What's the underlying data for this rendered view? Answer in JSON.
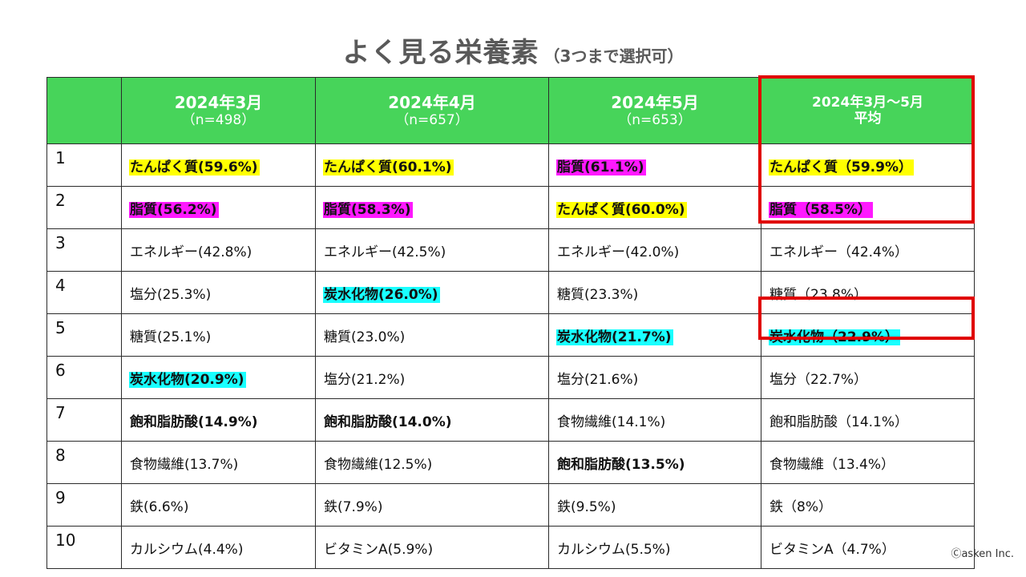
{
  "title": {
    "main": "よく見る栄養素",
    "sub": "（3つまで選択可）"
  },
  "columns": [
    {
      "month": "",
      "n": ""
    },
    {
      "month": "2024年3月",
      "n": "（n=498）"
    },
    {
      "month": "2024年4月",
      "n": "（n=657）"
    },
    {
      "month": "2024年5月",
      "n": "（n=653）"
    },
    {
      "month": "2024年3月～5月",
      "n": "平均"
    }
  ],
  "rows": [
    {
      "rank": "1",
      "cells": [
        {
          "text": "たんぱく質(59.6%)",
          "hl": "yellow",
          "bold": true
        },
        {
          "text": "たんぱく質(60.1%)",
          "hl": "yellow",
          "bold": true
        },
        {
          "text": "脂質(61.1%)",
          "hl": "pink",
          "bold": true
        },
        {
          "text": "たんぱく質（59.9%）",
          "hl": "yellow",
          "bold": true
        }
      ]
    },
    {
      "rank": "2",
      "cells": [
        {
          "text": "脂質(56.2%)",
          "hl": "pink",
          "bold": true
        },
        {
          "text": "脂質(58.3%)",
          "hl": "pink",
          "bold": true
        },
        {
          "text": "たんぱく質(60.0%)",
          "hl": "yellow",
          "bold": true
        },
        {
          "text": "脂質（58.5%）",
          "hl": "pink",
          "bold": true
        }
      ]
    },
    {
      "rank": "3",
      "cells": [
        {
          "text": "エネルギー(42.8%)",
          "hl": "",
          "bold": false
        },
        {
          "text": "エネルギー(42.5%)",
          "hl": "",
          "bold": false
        },
        {
          "text": "エネルギー(42.0%)",
          "hl": "",
          "bold": false
        },
        {
          "text": "エネルギー（42.4%）",
          "hl": "",
          "bold": false
        }
      ]
    },
    {
      "rank": "4",
      "cells": [
        {
          "text": "塩分(25.3%)",
          "hl": "",
          "bold": false
        },
        {
          "text": "炭水化物(26.0%)",
          "hl": "cyan",
          "bold": true
        },
        {
          "text": "糖質(23.3%)",
          "hl": "",
          "bold": false
        },
        {
          "text": "糖質（23.8%）",
          "hl": "",
          "bold": false
        }
      ]
    },
    {
      "rank": "5",
      "cells": [
        {
          "text": "糖質(25.1%)",
          "hl": "",
          "bold": false
        },
        {
          "text": "糖質(23.0%)",
          "hl": "",
          "bold": false
        },
        {
          "text": "炭水化物(21.7%)",
          "hl": "cyan",
          "bold": true
        },
        {
          "text": "炭水化物（22.9%）",
          "hl": "cyan",
          "bold": true
        }
      ]
    },
    {
      "rank": "6",
      "cells": [
        {
          "text": "炭水化物(20.9%)",
          "hl": "cyan",
          "bold": true
        },
        {
          "text": "塩分(21.2%)",
          "hl": "",
          "bold": false
        },
        {
          "text": "塩分(21.6%)",
          "hl": "",
          "bold": false
        },
        {
          "text": "塩分（22.7%）",
          "hl": "",
          "bold": false
        }
      ]
    },
    {
      "rank": "7",
      "cells": [
        {
          "text": "飽和脂肪酸(14.9%)",
          "hl": "",
          "bold": true
        },
        {
          "text": "飽和脂肪酸(14.0%)",
          "hl": "",
          "bold": true
        },
        {
          "text": "食物繊維(14.1%)",
          "hl": "",
          "bold": false
        },
        {
          "text": "飽和脂肪酸（14.1%）",
          "hl": "",
          "bold": false
        }
      ]
    },
    {
      "rank": "8",
      "cells": [
        {
          "text": "食物繊維(13.7%)",
          "hl": "",
          "bold": false
        },
        {
          "text": "食物繊維(12.5%)",
          "hl": "",
          "bold": false
        },
        {
          "text": "飽和脂肪酸(13.5%)",
          "hl": "",
          "bold": true
        },
        {
          "text": "食物繊維（13.4%）",
          "hl": "",
          "bold": false
        }
      ]
    },
    {
      "rank": "9",
      "cells": [
        {
          "text": "鉄(6.6%)",
          "hl": "",
          "bold": false
        },
        {
          "text": "鉄(7.9%)",
          "hl": "",
          "bold": false
        },
        {
          "text": "鉄(9.5%)",
          "hl": "",
          "bold": false
        },
        {
          "text": "鉄（8%）",
          "hl": "",
          "bold": false
        }
      ]
    },
    {
      "rank": "10",
      "cells": [
        {
          "text": "カルシウム(4.4%)",
          "hl": "",
          "bold": false
        },
        {
          "text": "ビタミンA(5.9%)",
          "hl": "",
          "bold": false
        },
        {
          "text": "カルシウム(5.5%)",
          "hl": "",
          "bold": false
        },
        {
          "text": "ビタミンA（4.7%）",
          "hl": "",
          "bold": false
        }
      ]
    }
  ],
  "colors": {
    "header": "#47d45a",
    "yellow": "#ffff00",
    "pink": "#ff19ff",
    "cyan": "#19ffff",
    "frame": "#e00000"
  },
  "copyright": "Ⓒasken Inc."
}
